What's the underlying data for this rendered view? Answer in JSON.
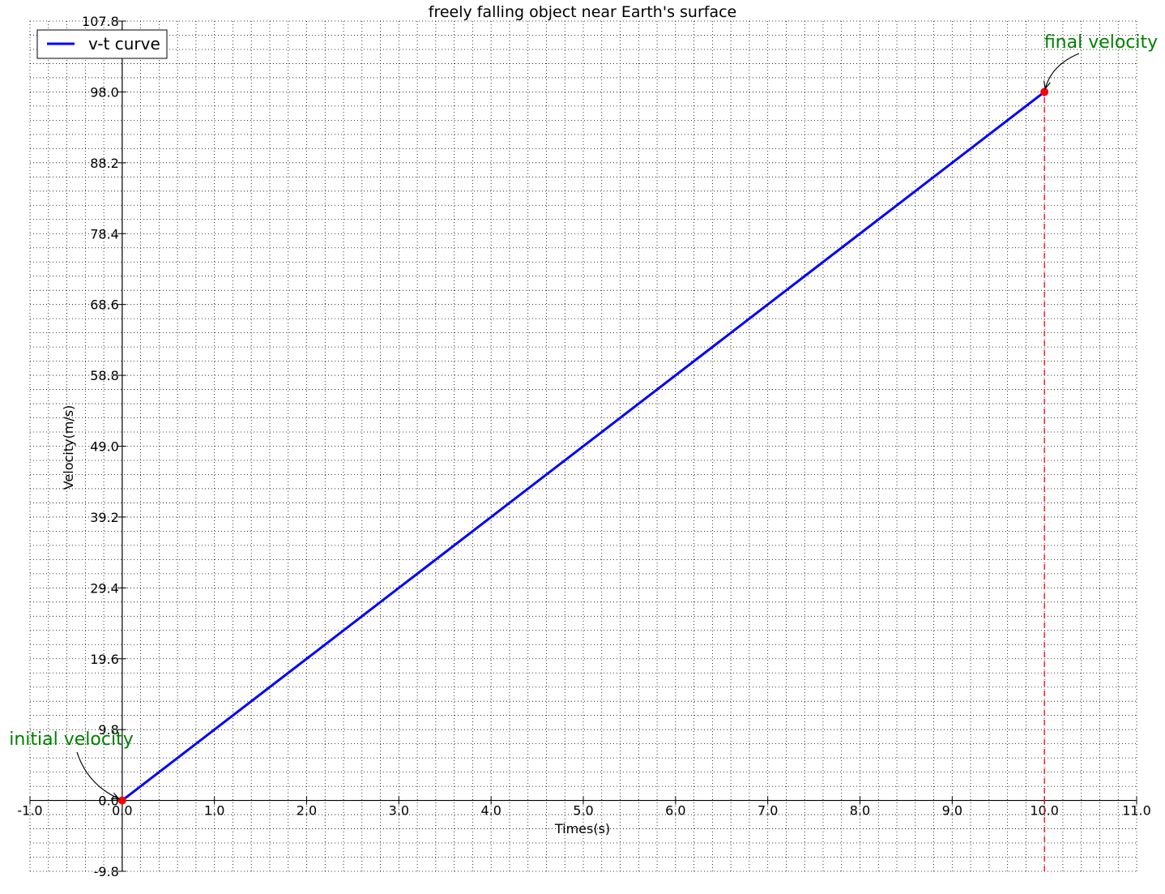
{
  "chart_data": {
    "type": "line",
    "title": "freely falling object near Earth's surface",
    "xlabel": "Times(s)",
    "ylabel": "Velocity(m/s)",
    "xlim": [
      -1.0,
      11.0
    ],
    "ylim": [
      -9.8,
      107.8
    ],
    "xticks": [
      "-1.0",
      "0.0",
      "1.0",
      "2.0",
      "3.0",
      "4.0",
      "5.0",
      "6.0",
      "7.0",
      "8.0",
      "9.0",
      "10.0",
      "11.0"
    ],
    "yticks": [
      "-9.8",
      "0.0",
      "9.8",
      "19.6",
      "29.4",
      "39.2",
      "49.0",
      "58.8",
      "68.6",
      "78.4",
      "88.2",
      "98.0",
      "107.8"
    ],
    "grid": true,
    "legend_position": "top-left",
    "series": [
      {
        "name": "v-t curve",
        "color": "#0000ff",
        "x": [
          0,
          10
        ],
        "y": [
          0,
          98.0
        ]
      }
    ],
    "points": [
      {
        "x": 0,
        "y": 0,
        "color": "#ff0000"
      },
      {
        "x": 10,
        "y": 98.0,
        "color": "#ff0000"
      }
    ],
    "vertical_line": {
      "x": 10,
      "from_y": -9.8,
      "to_y": 98.0,
      "color": "#ff0000",
      "style": "dashed"
    },
    "annotations": [
      {
        "text": "initial velocity",
        "x": 0,
        "y": 0,
        "color": "#008000"
      },
      {
        "text": "final velocity",
        "x": 10,
        "y": 98.0,
        "color": "#008000"
      }
    ]
  }
}
